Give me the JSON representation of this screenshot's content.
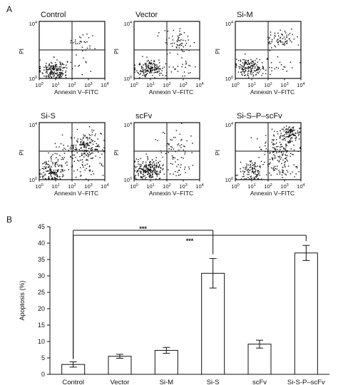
{
  "panel_a_label": "A",
  "panel_b_label": "B",
  "chart_data": [
    {
      "type": "scatter",
      "panel": "A",
      "xlabel": "Annexin V–FITC",
      "ylabel": "PI",
      "x_ticks": [
        {
          "base": "10",
          "exp": "0"
        },
        {
          "base": "10",
          "exp": "1"
        },
        {
          "base": "10",
          "exp": "2"
        },
        {
          "base": "10",
          "exp": "3"
        },
        {
          "base": "10",
          "exp": "4"
        }
      ],
      "y_ticks": [
        {
          "base": "10",
          "exp": "0"
        },
        {
          "base": "10",
          "exp": "4"
        }
      ],
      "x_scale": "log",
      "y_scale": "log",
      "xlim": [
        1,
        10000
      ],
      "ylim": [
        1,
        10000
      ],
      "quadrant_gate": {
        "x": 100,
        "y": 100
      },
      "plots": [
        {
          "name": "Control",
          "clusters": [
            {
              "cx": 0.9,
              "cy": 0.6,
              "sx": 0.4,
              "sy": 0.35,
              "n": 190
            },
            {
              "cx": 2.6,
              "cy": 2.5,
              "sx": 0.45,
              "sy": 0.4,
              "n": 28
            },
            {
              "cx": 2.9,
              "cy": 0.9,
              "sx": 0.45,
              "sy": 0.4,
              "n": 10
            }
          ]
        },
        {
          "name": "Vector",
          "clusters": [
            {
              "cx": 1.0,
              "cy": 0.7,
              "sx": 0.45,
              "sy": 0.3,
              "n": 170
            },
            {
              "cx": 2.8,
              "cy": 2.5,
              "sx": 0.5,
              "sy": 0.45,
              "n": 60
            },
            {
              "cx": 2.9,
              "cy": 0.9,
              "sx": 0.5,
              "sy": 0.4,
              "n": 22
            }
          ]
        },
        {
          "name": "Si-M",
          "clusters": [
            {
              "cx": 0.9,
              "cy": 0.8,
              "sx": 0.45,
              "sy": 0.3,
              "n": 160
            },
            {
              "cx": 2.8,
              "cy": 2.7,
              "sx": 0.45,
              "sy": 0.3,
              "n": 70
            },
            {
              "cx": 2.6,
              "cy": 1.0,
              "sx": 0.5,
              "sy": 0.4,
              "n": 20
            }
          ]
        },
        {
          "name": "Si-S",
          "clusters": [
            {
              "cx": 0.8,
              "cy": 0.6,
              "sx": 0.4,
              "sy": 0.4,
              "n": 140
            },
            {
              "cx": 2.9,
              "cy": 2.3,
              "sx": 0.45,
              "sy": 0.5,
              "n": 160
            },
            {
              "cx": 1.9,
              "cy": 1.8,
              "sx": 0.6,
              "sy": 0.6,
              "n": 60
            },
            {
              "cx": 2.9,
              "cy": 0.8,
              "sx": 0.5,
              "sy": 0.4,
              "n": 30
            }
          ]
        },
        {
          "name": "scFv",
          "clusters": [
            {
              "cx": 0.9,
              "cy": 0.7,
              "sx": 0.45,
              "sy": 0.35,
              "n": 230
            },
            {
              "cx": 2.5,
              "cy": 2.2,
              "sx": 0.6,
              "sy": 0.6,
              "n": 50
            },
            {
              "cx": 2.7,
              "cy": 0.9,
              "sx": 0.5,
              "sy": 0.4,
              "n": 25
            }
          ]
        },
        {
          "name": "Si-S–P–scFv",
          "clusters": [
            {
              "cx": 1.1,
              "cy": 0.6,
              "sx": 0.4,
              "sy": 0.35,
              "n": 110
            },
            {
              "cx": 3.3,
              "cy": 3.2,
              "sx": 0.35,
              "sy": 0.3,
              "n": 110
            },
            {
              "cx": 2.6,
              "cy": 2.0,
              "sx": 0.6,
              "sy": 0.6,
              "n": 120
            },
            {
              "cx": 2.9,
              "cy": 0.7,
              "sx": 0.5,
              "sy": 0.35,
              "n": 40
            }
          ]
        }
      ]
    },
    {
      "type": "bar",
      "panel": "B",
      "categories": [
        "Control",
        "Vector",
        "Si-M",
        "Si-S",
        "scFv",
        "Si-S-P–scFv"
      ],
      "values": [
        3.0,
        5.5,
        7.3,
        30.8,
        9.2,
        37.0
      ],
      "errors": [
        0.8,
        0.6,
        0.9,
        4.5,
        1.2,
        2.3
      ],
      "ylabel": "Apoptosis (%)",
      "ylim": [
        0,
        45
      ],
      "yticks": [
        0,
        5,
        10,
        15,
        20,
        25,
        30,
        35,
        40,
        45
      ],
      "bar_color": "#ffffff",
      "edge_color": "#111111",
      "significance": [
        {
          "from": "Control",
          "to": "Si-S",
          "label": "***"
        },
        {
          "from": "Control",
          "to": "Si-S-P–scFv",
          "label": "***"
        }
      ]
    }
  ]
}
